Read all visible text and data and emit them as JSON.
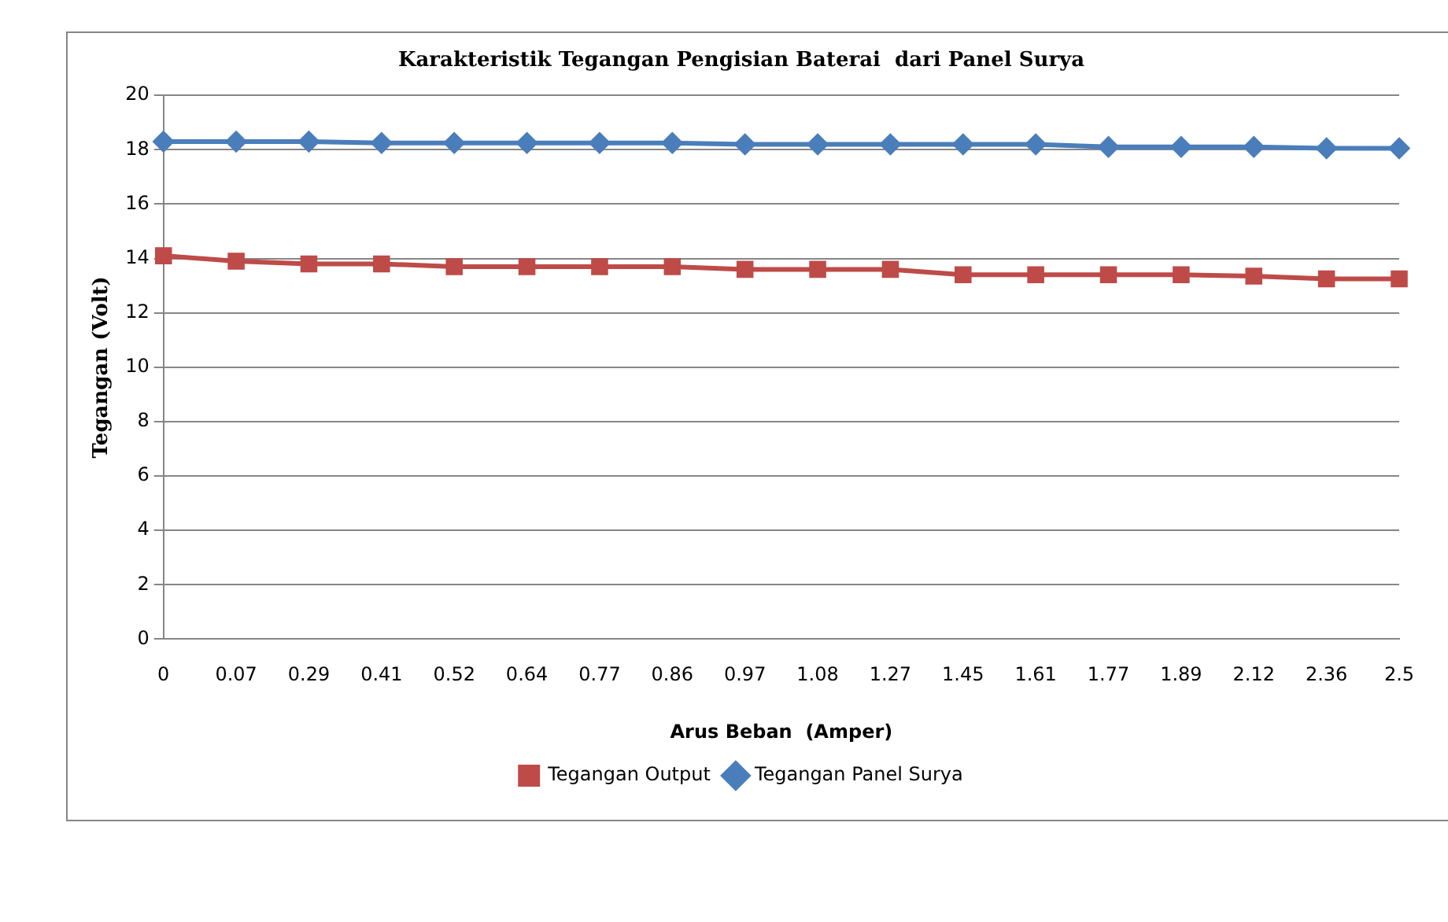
{
  "chart_data": {
    "type": "line",
    "title": "Karakteristik Tegangan Pengisian Baterai  dari Panel Surya",
    "xlabel": "Arus Beban  (Amper)",
    "ylabel": "Tegangan (Volt)",
    "categories": [
      "0",
      "0.07",
      "0.29",
      "0.41",
      "0.52",
      "0.64",
      "0.77",
      "0.86",
      "0.97",
      "1.08",
      "1.27",
      "1.45",
      "1.61",
      "1.77",
      "1.89",
      "2.12",
      "2.36",
      "2.5"
    ],
    "series": [
      {
        "name": "Tegangan Output",
        "color": "#be4b48",
        "marker": "square",
        "values": [
          14.1,
          13.9,
          13.8,
          13.8,
          13.7,
          13.7,
          13.7,
          13.7,
          13.6,
          13.6,
          13.6,
          13.4,
          13.4,
          13.4,
          13.4,
          13.35,
          13.25,
          13.25
        ]
      },
      {
        "name": "Tegangan Panel Surya",
        "color": "#4a7ebb",
        "marker": "diamond",
        "values": [
          18.3,
          18.3,
          18.3,
          18.25,
          18.25,
          18.25,
          18.25,
          18.25,
          18.2,
          18.2,
          18.2,
          18.2,
          18.2,
          18.1,
          18.1,
          18.1,
          18.05,
          18.05
        ]
      }
    ],
    "ylim": [
      0,
      20
    ],
    "yticks": [
      0,
      2,
      4,
      6,
      8,
      10,
      12,
      14,
      16,
      18,
      20
    ],
    "grid": "y",
    "legend": "bottom",
    "line_style": "solid"
  }
}
